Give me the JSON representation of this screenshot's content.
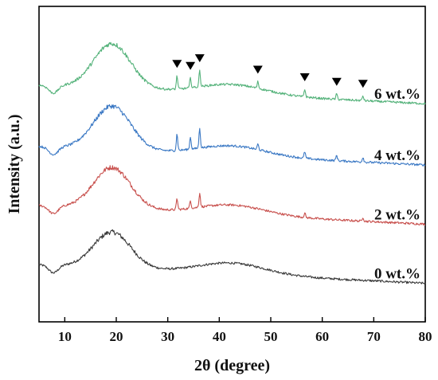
{
  "chart_data": {
    "type": "line",
    "xlabel": "2θ (degree)",
    "ylabel": "Intensity (a.u.)",
    "xlim": [
      5,
      80
    ],
    "x_ticks": [
      10,
      20,
      30,
      40,
      50,
      60,
      70,
      80
    ],
    "y_ticks_shown": false,
    "grid": false,
    "legend": "none (series labels printed at right end of each curve)",
    "series": [
      {
        "name": "0 wt.%",
        "color": "#3a3a3a",
        "offset": 0,
        "profile": {
          "baseline_start": 1.3,
          "baseline_end": 0.45,
          "main_peak_2theta": 19.2,
          "main_peak_height": 1.65,
          "broad_hump_2theta": 42.5,
          "broad_hump_height": 0.5
        },
        "sharp_peaks": []
      },
      {
        "name": "2 wt.%",
        "color": "#c8504d",
        "offset": 2.7,
        "profile": {
          "baseline_start": 1.3,
          "baseline_end": 0.45,
          "main_peak_2theta": 19.2,
          "main_peak_height": 1.9,
          "broad_hump_2theta": 42.5,
          "broad_hump_height": 0.45
        },
        "sharp_peaks": [
          [
            31.8,
            0.5
          ],
          [
            34.4,
            0.35
          ],
          [
            36.2,
            0.65
          ],
          [
            56.6,
            0.2
          ],
          [
            67.9,
            0.18
          ]
        ]
      },
      {
        "name": "4 wt.%",
        "color": "#3a78c4",
        "offset": 5.4,
        "profile": {
          "baseline_start": 1.3,
          "baseline_end": 0.45,
          "main_peak_2theta": 19.2,
          "main_peak_height": 2.0,
          "broad_hump_2theta": 42.5,
          "broad_hump_height": 0.45
        },
        "sharp_peaks": [
          [
            31.8,
            0.75
          ],
          [
            34.4,
            0.55
          ],
          [
            36.2,
            0.9
          ],
          [
            47.5,
            0.25
          ],
          [
            56.6,
            0.3
          ],
          [
            62.8,
            0.25
          ],
          [
            67.9,
            0.22
          ]
        ]
      },
      {
        "name": "6 wt.%",
        "color": "#54b27a",
        "offset": 8.2,
        "profile": {
          "baseline_start": 1.3,
          "baseline_end": 0.45,
          "main_peak_2theta": 19.2,
          "main_peak_height": 2.05,
          "broad_hump_2theta": 42.5,
          "broad_hump_height": 0.45
        },
        "sharp_peaks": [
          [
            31.8,
            0.6
          ],
          [
            34.4,
            0.45
          ],
          [
            36.2,
            0.75
          ],
          [
            47.5,
            0.3
          ],
          [
            56.6,
            0.35
          ],
          [
            62.8,
            0.25
          ],
          [
            67.9,
            0.22
          ]
        ],
        "peak_markers": [
          31.8,
          34.4,
          36.2,
          47.5,
          56.6,
          62.8,
          67.9
        ]
      }
    ],
    "marker_symbol": "filled down-pointing triangle"
  }
}
